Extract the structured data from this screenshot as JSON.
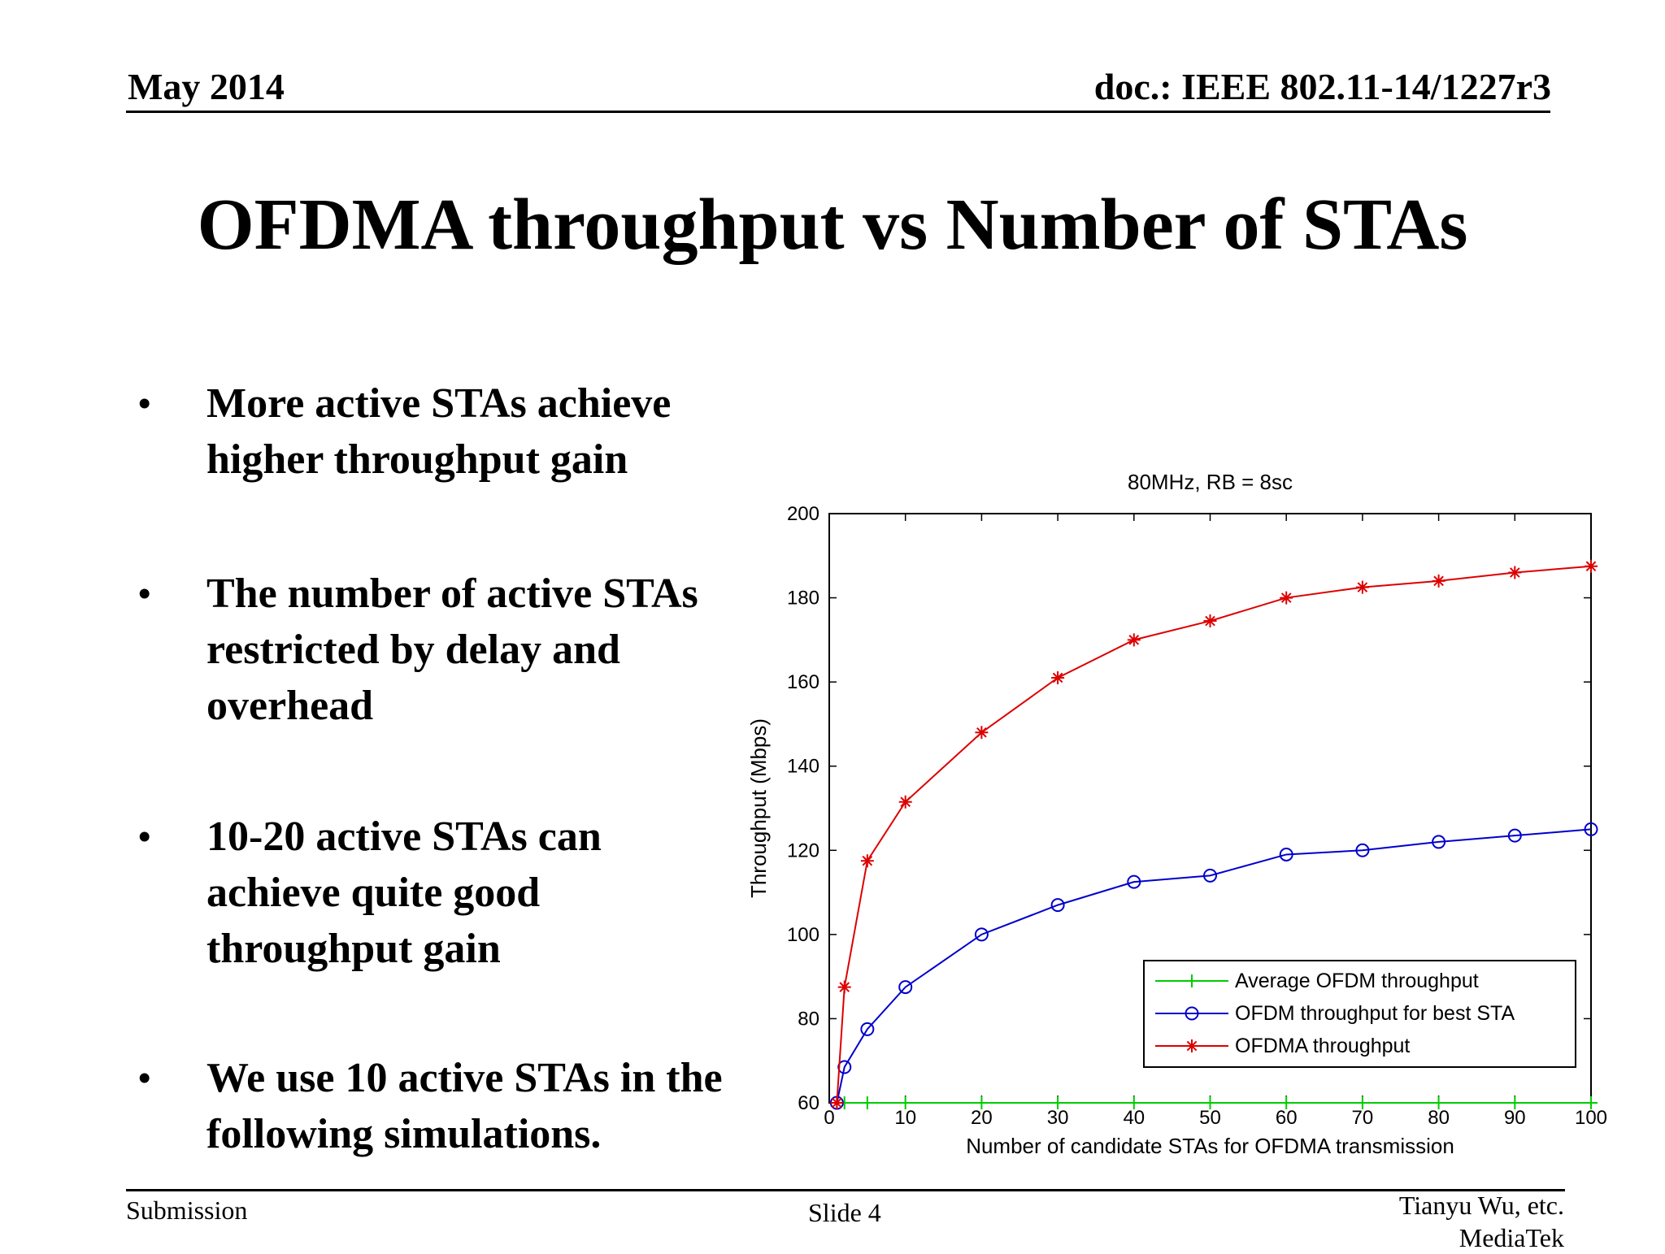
{
  "header": {
    "date": "May 2014",
    "doc": "doc.: IEEE 802.11-14/1227r3"
  },
  "title": "OFDMA throughput vs Number of STAs",
  "bullets": [
    {
      "symbol": "•",
      "text": "More active STAs achieve higher throughput gain"
    },
    {
      "symbol": "•",
      "text": "The number of active STAs restricted by delay and overhead"
    },
    {
      "symbol": "•",
      "text": "10-20 active STAs can achieve quite good throughput gain"
    },
    {
      "symbol": "•",
      "text": "We use 10 active STAs in the following simulations."
    }
  ],
  "footer": {
    "left": "Submission",
    "center": "Slide 4",
    "right_line1": "Tianyu Wu, etc.",
    "right_line2": "MediaTek"
  },
  "chart_data": {
    "type": "line",
    "title": "80MHz, RB = 8sc",
    "xlabel": "Number of candidate STAs for OFDMA transmission",
    "ylabel": "Throughput (Mbps)",
    "xlim": [
      0,
      100
    ],
    "ylim": [
      60,
      200
    ],
    "xticks": [
      0,
      10,
      20,
      30,
      40,
      50,
      60,
      70,
      80,
      90,
      100
    ],
    "yticks": [
      60,
      80,
      100,
      120,
      140,
      160,
      180,
      200
    ],
    "grid": false,
    "legend_position": "bottom-right",
    "series": [
      {
        "name": "Average OFDM throughput",
        "color": "#00cc00",
        "marker": "plus",
        "x": [
          1,
          2,
          5,
          10,
          20,
          30,
          40,
          50,
          60,
          70,
          80,
          90,
          100
        ],
        "y": [
          60,
          60,
          60,
          60,
          60,
          60,
          60,
          60,
          60,
          60,
          60,
          60,
          60
        ]
      },
      {
        "name": "OFDM throughput for best STA",
        "color": "#0000cc",
        "marker": "circle",
        "x": [
          1,
          2,
          5,
          10,
          20,
          30,
          40,
          50,
          60,
          70,
          80,
          90,
          100
        ],
        "y": [
          60,
          68.5,
          77.5,
          87.5,
          100,
          107,
          112.5,
          114,
          119,
          120,
          122,
          123.5,
          125
        ]
      },
      {
        "name": "OFDMA throughput",
        "color": "#dd0000",
        "marker": "star",
        "x": [
          1,
          2,
          5,
          10,
          20,
          30,
          40,
          50,
          60,
          70,
          80,
          90,
          100
        ],
        "y": [
          60,
          87.5,
          117.5,
          131.5,
          148,
          161,
          170,
          174.5,
          180,
          182.5,
          184,
          186,
          187.5
        ]
      }
    ]
  }
}
